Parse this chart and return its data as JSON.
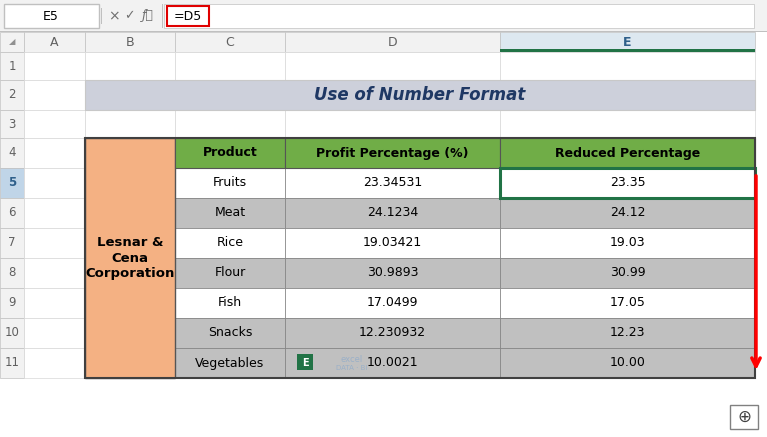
{
  "title": "Use of Number Format",
  "title_bg": "#cdd0db",
  "title_color": "#1f3864",
  "header_bg": "#70ad47",
  "company_bg": "#f4b183",
  "company_text": "Lesnar &\nCena\nCorporation",
  "products": [
    "Fruits",
    "Meat",
    "Rice",
    "Flour",
    "Fish",
    "Snacks",
    "Vegetables"
  ],
  "profit_pct": [
    "23.34531",
    "24.1234",
    "19.03421",
    "30.9893",
    "17.0499",
    "12.230932",
    "10.0021"
  ],
  "reduced_pct": [
    "23.35",
    "24.12",
    "19.03",
    "30.99",
    "17.05",
    "12.23",
    "10.00"
  ],
  "col_headers": [
    "Product",
    "Profit Percentage (%)",
    "Reduced Percentage"
  ],
  "row_data_colors": [
    "#ffffff",
    "#c0c0c0",
    "#ffffff",
    "#c0c0c0",
    "#ffffff",
    "#c0c0c0",
    "#c0c0c0"
  ],
  "formula_text": "=D5",
  "cell_ref": "E5",
  "fig_bg": "#ffffff",
  "formula_bar_bg": "#f2f2f2",
  "col_header_bg": "#f2f2f2",
  "col_E_header_bg": "#dde8f0",
  "row_num_bg": "#f2f2f2",
  "selected_row_num_bg": "#c0d5e8",
  "green_bar": "#217346",
  "fig_width": 7.67,
  "fig_height": 4.37,
  "dpi": 100
}
